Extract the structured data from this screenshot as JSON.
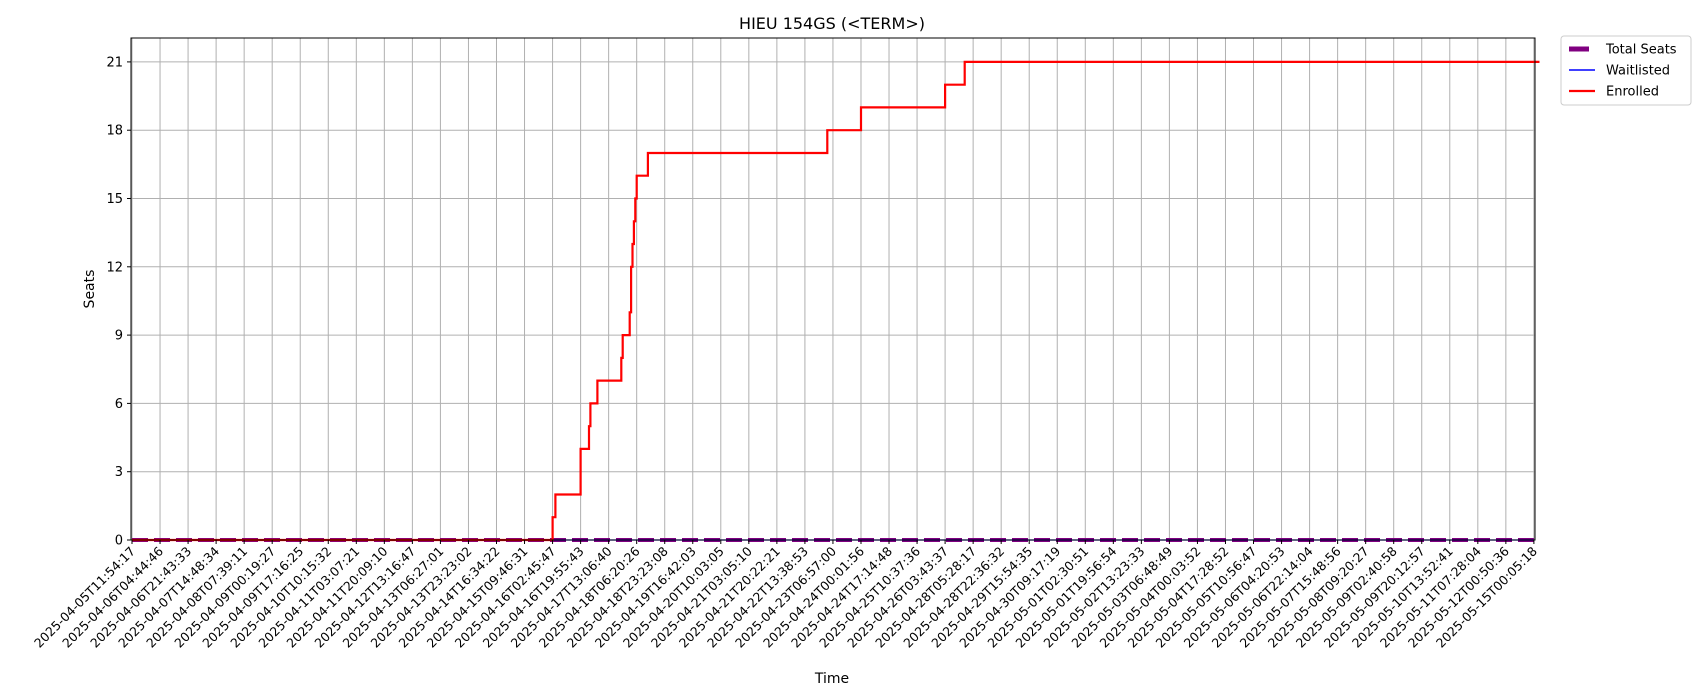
{
  "chart_data": {
    "type": "line",
    "title": "HIEU 154GS (<TERM>)",
    "xlabel": "Time",
    "ylabel": "Seats",
    "ylim": [
      0,
      22.05
    ],
    "yticks": [
      0,
      3,
      6,
      9,
      12,
      15,
      18,
      21
    ],
    "grid": true,
    "legend_position": "outside-top-right",
    "x_categories": [
      "2025-04-05T11:54:17",
      "2025-04-06T04:44:46",
      "2025-04-06T21:43:33",
      "2025-04-07T14:48:34",
      "2025-04-08T07:39:11",
      "2025-04-09T00:19:27",
      "2025-04-09T17:16:25",
      "2025-04-10T10:15:32",
      "2025-04-11T03:07:21",
      "2025-04-11T20:09:10",
      "2025-04-12T13:16:47",
      "2025-04-13T06:27:01",
      "2025-04-13T23:23:02",
      "2025-04-14T16:34:22",
      "2025-04-15T09:46:31",
      "2025-04-16T02:45:47",
      "2025-04-16T19:55:43",
      "2025-04-17T13:06:40",
      "2025-04-18T06:20:26",
      "2025-04-18T23:23:08",
      "2025-04-19T16:42:03",
      "2025-04-20T10:03:05",
      "2025-04-21T03:05:10",
      "2025-04-21T20:22:21",
      "2025-04-22T13:38:53",
      "2025-04-23T06:57:00",
      "2025-04-24T00:01:56",
      "2025-04-24T17:14:48",
      "2025-04-25T10:37:36",
      "2025-04-26T03:43:37",
      "2025-04-28T05:28:17",
      "2025-04-28T22:36:32",
      "2025-04-29T15:54:35",
      "2025-04-30T09:17:19",
      "2025-05-01T02:30:51",
      "2025-05-01T19:56:54",
      "2025-05-02T13:23:33",
      "2025-05-03T06:48:49",
      "2025-05-04T00:03:52",
      "2025-05-04T17:28:52",
      "2025-05-05T10:56:47",
      "2025-05-06T04:20:53",
      "2025-05-06T22:14:04",
      "2025-05-07T15:48:56",
      "2025-05-08T09:20:27",
      "2025-05-09T02:40:58",
      "2025-05-09T20:12:57",
      "2025-05-10T13:52:41",
      "2025-05-11T07:28:04",
      "2025-05-12T00:50:36",
      "2025-05-15T00:05:18"
    ],
    "series": [
      {
        "name": "Total Seats",
        "color": "#800080",
        "style": "dashed-thick",
        "values": [
          0,
          0,
          0,
          0,
          0,
          0,
          0,
          0,
          0,
          0,
          0,
          0,
          0,
          0,
          0,
          0,
          0,
          0,
          0,
          0,
          0,
          0,
          0,
          0,
          0,
          0,
          0,
          0,
          0,
          0,
          0,
          0,
          0,
          0,
          0,
          0,
          0,
          0,
          0,
          0,
          0,
          0,
          0,
          0,
          0,
          0,
          0,
          0,
          0,
          0,
          0
        ]
      },
      {
        "name": "Waitlisted",
        "color": "#0000ff",
        "style": "thin",
        "values": [
          0,
          0,
          0,
          0,
          0,
          0,
          0,
          0,
          0,
          0,
          0,
          0,
          0,
          0,
          0,
          0,
          0,
          0,
          0,
          0,
          0,
          0,
          0,
          0,
          0,
          0,
          0,
          0,
          0,
          0,
          0,
          0,
          0,
          0,
          0,
          0,
          0,
          0,
          0,
          0,
          0,
          0,
          0,
          0,
          0,
          0,
          0,
          0,
          0,
          0,
          0
        ]
      },
      {
        "name": "Enrolled",
        "color": "#ff0000",
        "style": "step",
        "steps": [
          [
            0,
            0
          ],
          [
            14.9,
            0
          ],
          [
            15.0,
            1
          ],
          [
            15.1,
            2
          ],
          [
            16.0,
            4
          ],
          [
            16.3,
            5
          ],
          [
            16.35,
            6
          ],
          [
            16.6,
            7
          ],
          [
            17.45,
            8
          ],
          [
            17.5,
            9
          ],
          [
            17.75,
            10
          ],
          [
            17.8,
            12
          ],
          [
            17.85,
            13
          ],
          [
            17.9,
            14
          ],
          [
            17.95,
            15
          ],
          [
            18.0,
            16
          ],
          [
            18.4,
            17
          ],
          [
            24.8,
            18
          ],
          [
            26.0,
            19
          ],
          [
            29.0,
            20
          ],
          [
            29.7,
            21
          ],
          [
            50.2,
            21
          ]
        ]
      }
    ]
  }
}
